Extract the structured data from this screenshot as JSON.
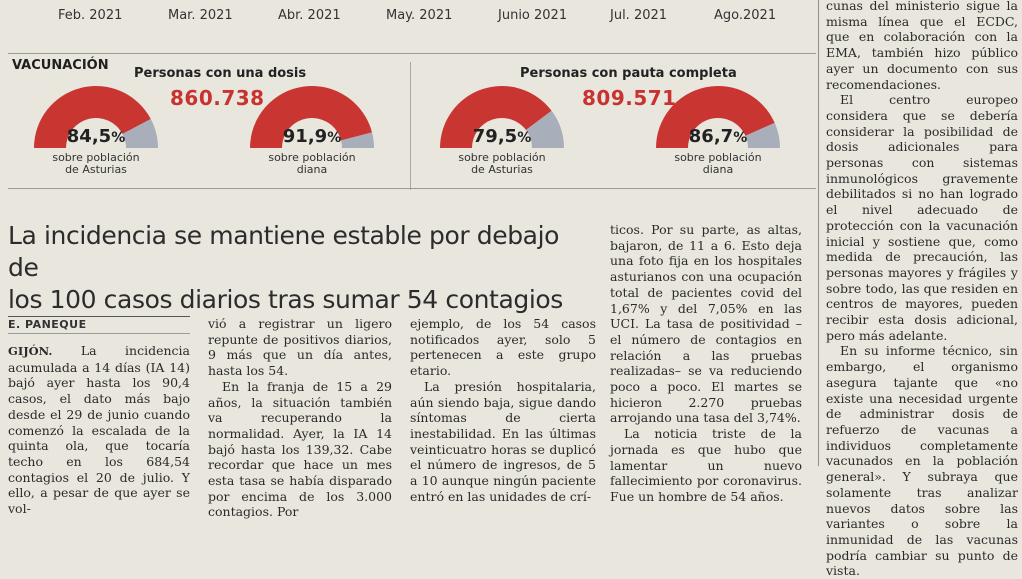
{
  "timeline": {
    "months": [
      "Feb. 2021",
      "Mar. 2021",
      "Abr. 2021",
      "May. 2021",
      "Junio 2021",
      "Jul. 2021",
      "Ago.2021"
    ]
  },
  "vaccination": {
    "section_label": "VACUNACIÓN",
    "one_dose": {
      "title": "Personas con una dosis",
      "total": "860.738",
      "gauges": [
        {
          "value": 84.5,
          "label": "84,5",
          "unit": "%",
          "caption_l1": "sobre población",
          "caption_l2": "de Asturias"
        },
        {
          "value": 91.9,
          "label": "91,9",
          "unit": "%",
          "caption_l1": "sobre población",
          "caption_l2": "diana"
        }
      ]
    },
    "full": {
      "title": "Personas con pauta completa",
      "total": "809.571",
      "gauges": [
        {
          "value": 79.5,
          "label": "79,5",
          "unit": "%",
          "caption_l1": "sobre población",
          "caption_l2": "de Asturias"
        },
        {
          "value": 86.7,
          "label": "86,7",
          "unit": "%",
          "caption_l1": "sobre población",
          "caption_l2": "diana"
        }
      ]
    },
    "colors": {
      "filled": "#c93632",
      "empty": "#a9aebb"
    }
  },
  "article": {
    "headline_l1": "La incidencia se mantiene estable por debajo de",
    "headline_l2": "los 100 casos diarios tras sumar 54 contagios",
    "byline": "E. PANEQUE",
    "dateline": "GIJÓN.",
    "col1_p1": "La incidencia acumulada a 14 días (IA 14) bajó ayer hasta los 90,4 casos, el dato más bajo desde el 29 de junio cuando comenzó la escalada de la quinta ola, que tocaría techo en los 684,54 contagios el 20 de julio. Y ello, a pesar de que ayer se vol-",
    "col2_p1": "vió a registrar un ligero repunte de positivos diarios, 9 más que un día antes, hasta los 54.",
    "col2_p2": "En la franja de 15 a 29 años, la situación también va recuperando la normalidad. Ayer, la IA 14 bajó hasta los 139,32. Cabe recordar que hace un mes esta tasa se había disparado por encima de los 3.000 contagios. Por",
    "col3_p1": "ejemplo, de los 54 casos notificados ayer, solo 5 pertenecen a este grupo etario.",
    "col3_p2": "La presión hospitalaria, aún siendo baja, sigue dando síntomas de cierta inestabilidad. En las últimas veinticuatro horas se duplicó el número de ingresos, de 5 a 10 aunque ningún paciente entró en las unidades de crí-",
    "col4_p1": "ticos. Por su parte, as altas, bajaron, de 11 a 6. Esto deja una foto fija en los hospitales asturianos con una ocupación total de pacientes covid del 1,67% y del 7,05% en las UCI. La tasa de positividad –el número de contagios en relación a las pruebas realizadas– se va reduciendo poco a poco. El martes se hicieron 2.270 pruebas arrojando una tasa del 3,74%.",
    "col4_p2": "La noticia triste de la jornada es que hubo que lamentar un nuevo fallecimiento por coronavirus. Fue un hombre de 54 años."
  },
  "side_column": {
    "p1": "cunas del ministerio sigue la misma línea que el ECDC, que en colaboración con la EMA, también hizo público ayer un documento con sus recomendaciones.",
    "p2": "El centro europeo considera que se debería considerar la posibilidad de dosis adicionales para personas con sistemas inmunológicos gravemente debilitados si no han logrado el nivel adecuado de protección con la vacunación inicial y sostiene que, como medida de precaución, las personas mayores y frágiles y sobre todo, las que residen en centros de mayores, pueden recibir esta dosis adicional, pero más adelante.",
    "p3": "En su informe técnico, sin embargo, el organismo asegura tajante que «no existe una necesidad urgente de administrar dosis de refuerzo de vacunas a individuos completamente vacunados en la población general». Y subraya que solamente tras analizar nuevos datos sobre las variantes o sobre la inmunidad de las vacunas podría cambiar su punto de vista."
  }
}
